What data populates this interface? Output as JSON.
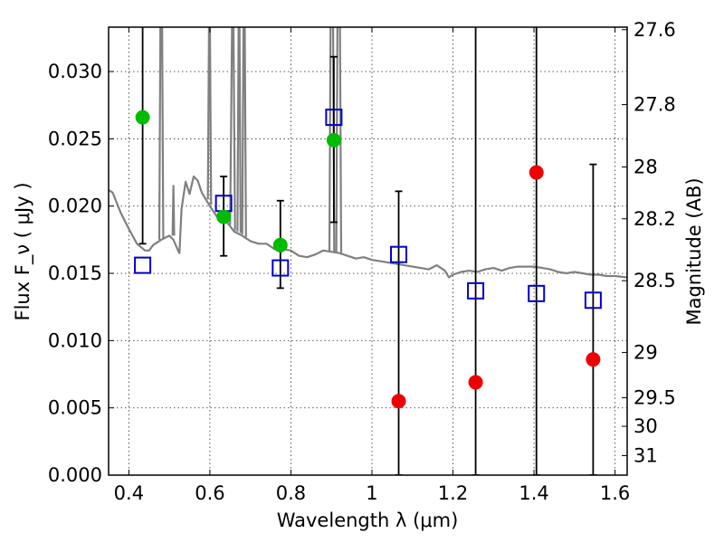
{
  "chart_data": {
    "type": "scatter",
    "xlabel": "Wavelength  λ (μm)",
    "ylabel": "Flux  F_ν  ( μJy )",
    "ylabel_right": "Magnitude (AB)",
    "xlim": [
      0.35,
      1.63
    ],
    "ylim": [
      0.0,
      0.0333
    ],
    "grid": true,
    "x_ticks": [
      0.4,
      0.6,
      0.8,
      1.0,
      1.2,
      1.4,
      1.6
    ],
    "x_tick_labels": [
      "0.4",
      "0.6",
      "0.8",
      "1",
      "1.2",
      "1.4",
      "1.6"
    ],
    "y_ticks": [
      0.0,
      0.005,
      0.01,
      0.015,
      0.02,
      0.025,
      0.03
    ],
    "y_tick_labels": [
      "0.000",
      "0.005",
      "0.010",
      "0.015",
      "0.020",
      "0.025",
      "0.030"
    ],
    "mag_ticks": [
      {
        "label": "27.6",
        "mag": 27.6
      },
      {
        "label": "27.8",
        "mag": 27.8
      },
      {
        "label": "28",
        "mag": 28.0
      },
      {
        "label": "28.2",
        "mag": 28.2
      },
      {
        "label": "28.5",
        "mag": 28.5
      },
      {
        "label": "29",
        "mag": 29.0
      },
      {
        "label": "29.5",
        "mag": 29.5
      },
      {
        "label": "30",
        "mag": 30.0
      },
      {
        "label": "31",
        "mag": 31.0
      }
    ],
    "series": [
      {
        "kind": "line",
        "color": "#808080",
        "points": [
          [
            0.35,
            0.0212
          ],
          [
            0.36,
            0.021
          ],
          [
            0.38,
            0.0195
          ],
          [
            0.4,
            0.0183
          ],
          [
            0.42,
            0.0172
          ],
          [
            0.44,
            0.0167
          ],
          [
            0.45,
            0.0167
          ],
          [
            0.46,
            0.0171
          ],
          [
            0.48,
            0.0175
          ],
          [
            0.5,
            0.0178
          ],
          [
            0.51,
            0.0175
          ],
          [
            0.52,
            0.0168
          ],
          [
            0.525,
            0.0165
          ],
          [
            0.53,
            0.0198
          ],
          [
            0.54,
            0.0218
          ],
          [
            0.55,
            0.0209
          ],
          [
            0.56,
            0.0222
          ],
          [
            0.57,
            0.0219
          ],
          [
            0.58,
            0.021
          ],
          [
            0.59,
            0.0205
          ],
          [
            0.6,
            0.02
          ],
          [
            0.62,
            0.0191
          ],
          [
            0.64,
            0.0189
          ],
          [
            0.66,
            0.0181
          ],
          [
            0.68,
            0.0178
          ],
          [
            0.7,
            0.0174
          ],
          [
            0.72,
            0.0172
          ],
          [
            0.74,
            0.0172
          ],
          [
            0.76,
            0.0168
          ],
          [
            0.78,
            0.0168
          ],
          [
            0.8,
            0.0167
          ],
          [
            0.82,
            0.0163
          ],
          [
            0.84,
            0.0162
          ],
          [
            0.86,
            0.0164
          ],
          [
            0.88,
            0.0167
          ],
          [
            0.9,
            0.0166
          ],
          [
            0.92,
            0.0165
          ],
          [
            0.94,
            0.0163
          ],
          [
            0.96,
            0.0161
          ],
          [
            0.98,
            0.0162
          ],
          [
            1.0,
            0.016
          ],
          [
            1.02,
            0.0159
          ],
          [
            1.04,
            0.0158
          ],
          [
            1.06,
            0.0157
          ],
          [
            1.08,
            0.0156
          ],
          [
            1.1,
            0.0155
          ],
          [
            1.12,
            0.0154
          ],
          [
            1.14,
            0.0153
          ],
          [
            1.16,
            0.0156
          ],
          [
            1.18,
            0.0152
          ],
          [
            1.19,
            0.0147
          ],
          [
            1.2,
            0.0149
          ],
          [
            1.22,
            0.0151
          ],
          [
            1.24,
            0.0152
          ],
          [
            1.26,
            0.0151
          ],
          [
            1.28,
            0.0153
          ],
          [
            1.3,
            0.0154
          ],
          [
            1.32,
            0.0152
          ],
          [
            1.34,
            0.0154
          ],
          [
            1.36,
            0.0155
          ],
          [
            1.38,
            0.0155
          ],
          [
            1.4,
            0.0155
          ],
          [
            1.42,
            0.0154
          ],
          [
            1.44,
            0.0153
          ],
          [
            1.46,
            0.0151
          ],
          [
            1.48,
            0.015
          ],
          [
            1.5,
            0.0151
          ],
          [
            1.52,
            0.015
          ],
          [
            1.54,
            0.0149
          ],
          [
            1.56,
            0.0149
          ],
          [
            1.58,
            0.0148
          ],
          [
            1.6,
            0.0148
          ],
          [
            1.63,
            0.0147
          ]
        ]
      },
      {
        "kind": "line",
        "color": "#808080",
        "points": [
          [
            0.475,
            0.0175
          ],
          [
            0.478,
            0.034
          ],
          [
            0.482,
            0.034
          ],
          [
            0.485,
            0.0176
          ]
        ]
      },
      {
        "kind": "line",
        "color": "#808080",
        "points": [
          [
            0.508,
            0.0178
          ],
          [
            0.51,
            0.0215
          ],
          [
            0.512,
            0.0178
          ]
        ]
      },
      {
        "kind": "line",
        "color": "#808080",
        "points": [
          [
            0.595,
            0.0205
          ],
          [
            0.598,
            0.034
          ],
          [
            0.6,
            0.034
          ],
          [
            0.603,
            0.0201
          ]
        ]
      },
      {
        "kind": "line",
        "color": "#808080",
        "points": [
          [
            0.65,
            0.0186
          ],
          [
            0.655,
            0.034
          ],
          [
            0.658,
            0.034
          ],
          [
            0.662,
            0.0182
          ]
        ]
      },
      {
        "kind": "line",
        "color": "#808080",
        "points": [
          [
            0.668,
            0.0181
          ],
          [
            0.671,
            0.034
          ],
          [
            0.673,
            0.034
          ],
          [
            0.676,
            0.018
          ]
        ]
      },
      {
        "kind": "line",
        "color": "#808080",
        "points": [
          [
            0.68,
            0.0179
          ],
          [
            0.683,
            0.034
          ],
          [
            0.686,
            0.034
          ],
          [
            0.689,
            0.0177
          ]
        ]
      },
      {
        "kind": "line",
        "color": "#808080",
        "points": [
          [
            0.895,
            0.0166
          ],
          [
            0.898,
            0.034
          ],
          [
            0.904,
            0.034
          ],
          [
            0.907,
            0.0166
          ]
        ]
      },
      {
        "kind": "line",
        "color": "#808080",
        "points": [
          [
            0.912,
            0.0165
          ],
          [
            0.915,
            0.034
          ],
          [
            0.921,
            0.034
          ],
          [
            0.924,
            0.0165
          ]
        ]
      },
      {
        "kind": "errorbars",
        "color": "#000000",
        "points": [
          {
            "x": 0.434,
            "lo": 0.0172,
            "hi": 0.034
          },
          {
            "x": 0.634,
            "lo": 0.0163,
            "hi": 0.0222
          },
          {
            "x": 0.774,
            "lo": 0.0139,
            "hi": 0.0204
          },
          {
            "x": 0.906,
            "lo": 0.0188,
            "hi": 0.0311
          },
          {
            "x": 1.066,
            "lo": 0.0,
            "hi": 0.0211
          },
          {
            "x": 1.256,
            "lo": 0.0,
            "hi": 0.034
          },
          {
            "x": 1.406,
            "lo": 0.0,
            "hi": 0.034
          },
          {
            "x": 1.546,
            "lo": 0.0,
            "hi": 0.0231
          }
        ]
      },
      {
        "kind": "squares",
        "color": "#0000cc",
        "points": [
          [
            0.434,
            0.0156
          ],
          [
            0.634,
            0.0202
          ],
          [
            0.774,
            0.0154
          ],
          [
            0.906,
            0.0266
          ],
          [
            1.066,
            0.0164
          ],
          [
            1.256,
            0.0137
          ],
          [
            1.406,
            0.0135
          ],
          [
            1.546,
            0.013
          ]
        ]
      },
      {
        "kind": "circles",
        "color": "#00bb00",
        "points": [
          [
            0.434,
            0.0266
          ],
          [
            0.634,
            0.0192
          ],
          [
            0.774,
            0.0171
          ],
          [
            0.906,
            0.0249
          ]
        ]
      },
      {
        "kind": "circles",
        "color": "#ee0000",
        "points": [
          [
            1.066,
            0.0055
          ],
          [
            1.256,
            0.0069
          ],
          [
            1.406,
            0.0225
          ],
          [
            1.546,
            0.0086
          ]
        ]
      }
    ]
  }
}
